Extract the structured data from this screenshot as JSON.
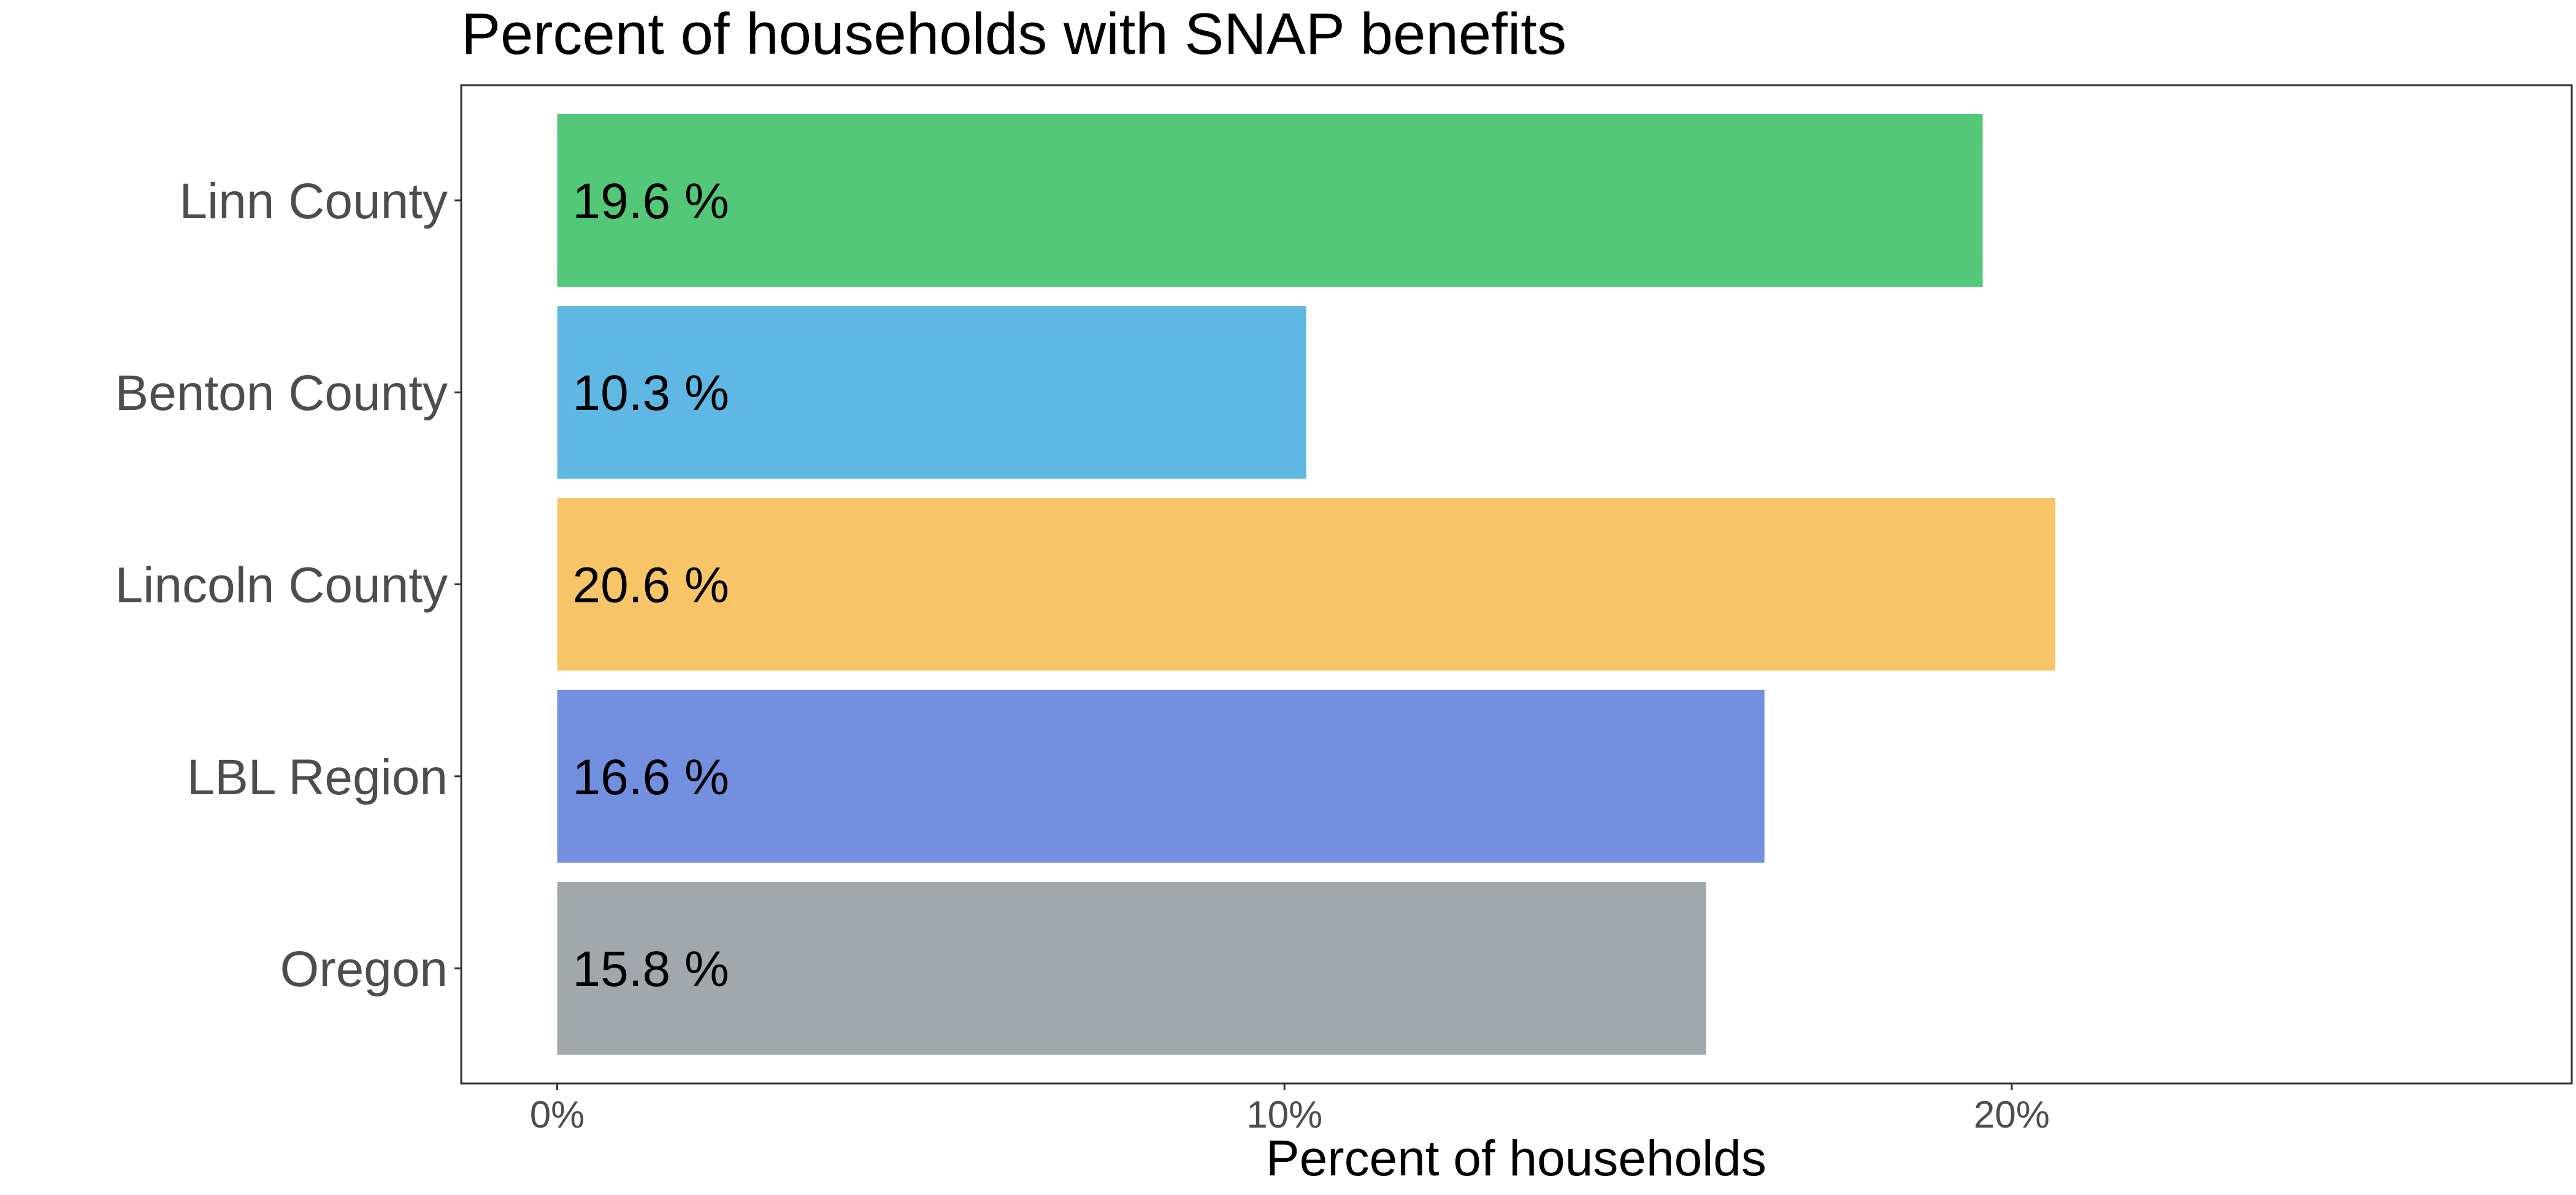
{
  "chart_data": {
    "type": "bar",
    "orientation": "horizontal",
    "title": "Percent of households with SNAP benefits",
    "xlabel": "Percent of households",
    "ylabel": "",
    "categories": [
      "Linn County",
      "Benton County",
      "Lincoln County",
      "LBL Region",
      "Oregon"
    ],
    "values": [
      19.6,
      10.3,
      20.6,
      16.6,
      15.8
    ],
    "data_labels": [
      "19.6 %",
      "10.3 %",
      "20.6 %",
      "16.6 %",
      "15.8 %"
    ],
    "colors": [
      "#52c878",
      "#5fb8e4",
      "#f8c468",
      "#728fe0",
      "#a1a8ac"
    ],
    "xlim": [
      -1.32,
      27.7
    ],
    "x_ticks": [
      0,
      10,
      20
    ],
    "x_tick_labels": [
      "0%",
      "10%",
      "20%"
    ],
    "grid": false,
    "legend": "none"
  }
}
